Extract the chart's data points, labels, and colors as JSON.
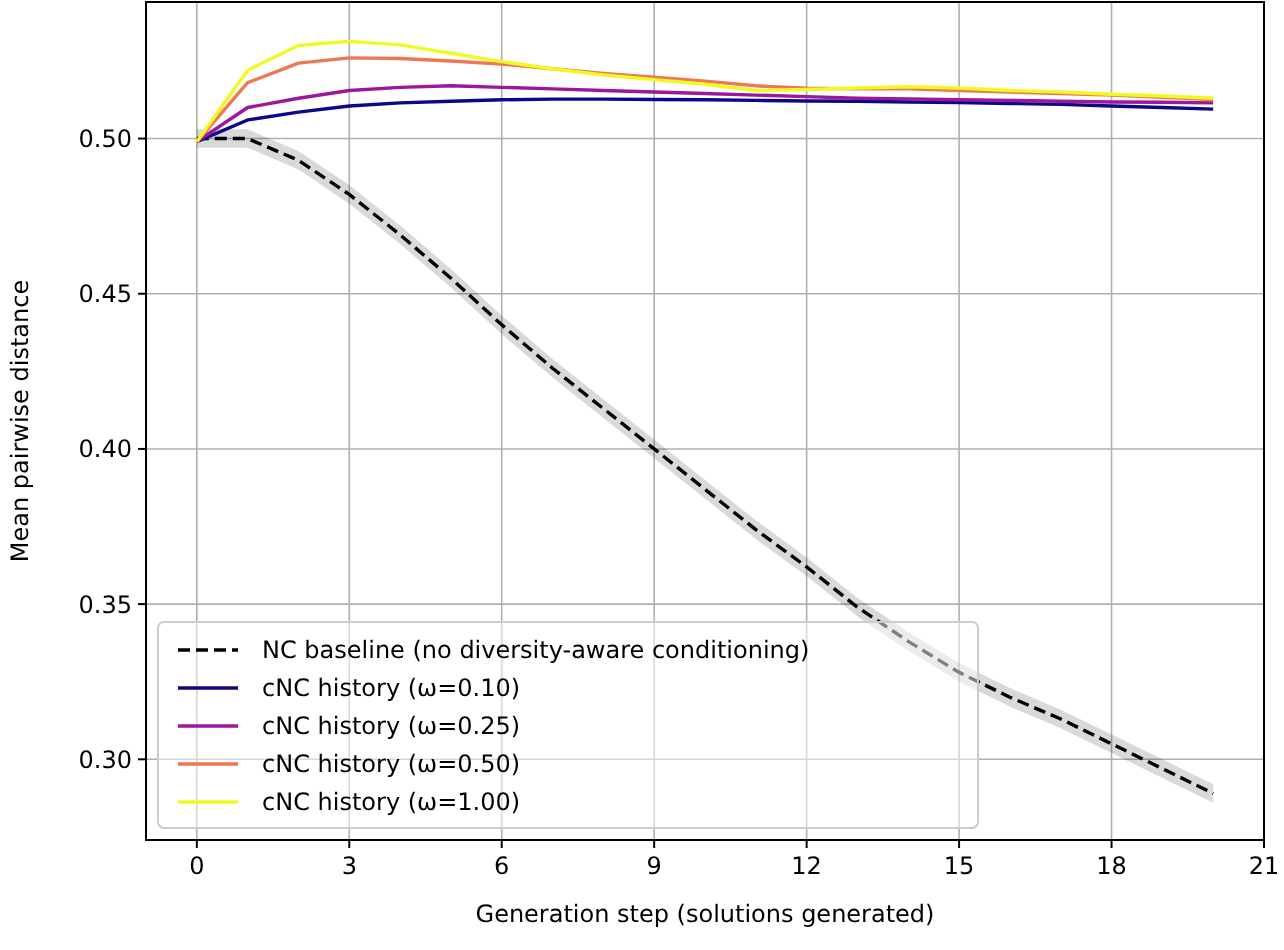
{
  "chart_data": {
    "type": "line",
    "xlabel": "Generation step (solutions generated)",
    "ylabel": "Mean pairwise distance",
    "x": [
      0,
      1,
      2,
      3,
      4,
      5,
      6,
      7,
      8,
      9,
      10,
      11,
      12,
      13,
      14,
      15,
      16,
      17,
      18,
      19,
      20
    ],
    "xlim": [
      -1,
      21
    ],
    "xticks": [
      0,
      3,
      6,
      9,
      12,
      15,
      18,
      21
    ],
    "ylim": [
      0.274,
      0.544
    ],
    "yticks": [
      {
        "value": 0.3,
        "label": "0.30"
      },
      {
        "value": 0.35,
        "label": "0.35"
      },
      {
        "value": 0.4,
        "label": "0.40"
      },
      {
        "value": 0.45,
        "label": "0.45"
      },
      {
        "value": 0.5,
        "label": "0.50"
      }
    ],
    "grid": true,
    "legend": "bottom left",
    "series": [
      {
        "name": "NC baseline (no diversity-aware conditioning)",
        "color": "#000000",
        "line_style": "dashed",
        "values": [
          0.5,
          0.5,
          0.493,
          0.482,
          0.469,
          0.455,
          0.44,
          0.426,
          0.413,
          0.4,
          0.387,
          0.374,
          0.362,
          0.349,
          0.338,
          0.328,
          0.32,
          0.313,
          0.305,
          0.297,
          0.289
        ],
        "lower": [
          0.497,
          0.497,
          0.49,
          0.479,
          0.466,
          0.452,
          0.437,
          0.423,
          0.41,
          0.397,
          0.384,
          0.371,
          0.359,
          0.346,
          0.335,
          0.325,
          0.317,
          0.31,
          0.302,
          0.294,
          0.286
        ],
        "upper": [
          0.503,
          0.503,
          0.496,
          0.485,
          0.472,
          0.458,
          0.443,
          0.429,
          0.416,
          0.403,
          0.39,
          0.377,
          0.365,
          0.352,
          0.341,
          0.331,
          0.323,
          0.316,
          0.308,
          0.3,
          0.292
        ]
      },
      {
        "name": "cNC history (ω=0.10)",
        "color": "#0d0887",
        "line_style": "solid",
        "values": [
          0.499,
          0.506,
          0.5085,
          0.5105,
          0.5115,
          0.512,
          0.5125,
          0.5127,
          0.5127,
          0.5126,
          0.5125,
          0.5123,
          0.5121,
          0.512,
          0.5118,
          0.5116,
          0.5113,
          0.511,
          0.5105,
          0.51,
          0.5095
        ]
      },
      {
        "name": "cNC history (ω=0.25)",
        "color": "#9c179e",
        "line_style": "solid",
        "values": [
          0.499,
          0.51,
          0.513,
          0.5155,
          0.5165,
          0.517,
          0.5165,
          0.516,
          0.5155,
          0.515,
          0.5145,
          0.514,
          0.5135,
          0.513,
          0.5128,
          0.5125,
          0.5123,
          0.512,
          0.5118,
          0.5117,
          0.5115
        ]
      },
      {
        "name": "cNC history (ω=0.50)",
        "color": "#ed7953",
        "line_style": "solid",
        "values": [
          0.499,
          0.518,
          0.5243,
          0.526,
          0.5258,
          0.525,
          0.524,
          0.5225,
          0.521,
          0.5198,
          0.5185,
          0.517,
          0.5162,
          0.516,
          0.516,
          0.5155,
          0.515,
          0.5145,
          0.514,
          0.5133,
          0.5126
        ]
      },
      {
        "name": "cNC history (ω=1.00)",
        "color": "#f0f921",
        "line_style": "solid",
        "values": [
          0.499,
          0.522,
          0.53,
          0.5313,
          0.5302,
          0.5275,
          0.5248,
          0.5225,
          0.5205,
          0.519,
          0.5175,
          0.5155,
          0.5158,
          0.5163,
          0.5167,
          0.5163,
          0.5155,
          0.515,
          0.5143,
          0.5137,
          0.513
        ]
      }
    ]
  }
}
